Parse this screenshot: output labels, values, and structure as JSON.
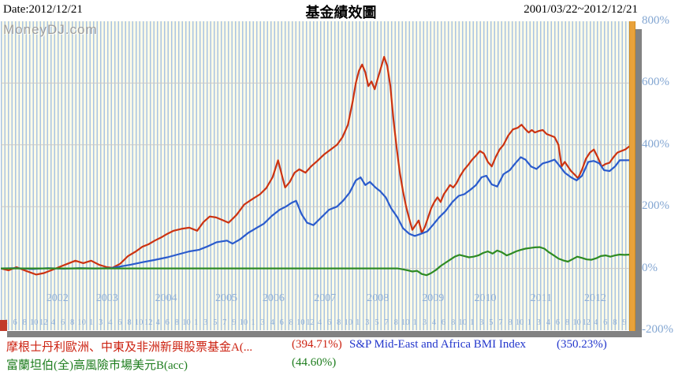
{
  "header": {
    "date_label": "Date:2012/12/21",
    "title": "基金績效圖",
    "range_label": "2001/03/22~2012/12/21"
  },
  "watermark": "MoneyDJ.com",
  "colors": {
    "plot_background": "#fdfbe8",
    "stripe": "#a9c4e2",
    "grid": "#c9c9c9",
    "axis_text": "#83a6d2",
    "scrollbar_orange": "#e9a23b",
    "shadow_gray": "#828282",
    "red_series": "#cc3311",
    "blue_series": "#2a5bcc",
    "green_series": "#2e8b22"
  },
  "axes": {
    "y_ticks": [
      {
        "label": "800%",
        "value": 800
      },
      {
        "label": "600%",
        "value": 600
      },
      {
        "label": "400%",
        "value": 400
      },
      {
        "label": "200%",
        "value": 200
      },
      {
        "label": "0%",
        "value": 0
      },
      {
        "label": "-200%",
        "value": -200
      }
    ],
    "year_ticks": [
      {
        "label": "2002",
        "u": 0.09
      },
      {
        "label": "2003",
        "u": 0.169
      },
      {
        "label": "2004",
        "u": 0.263
      },
      {
        "label": "2005",
        "u": 0.359
      },
      {
        "label": "2006",
        "u": 0.434
      },
      {
        "label": "2007",
        "u": 0.516
      },
      {
        "label": "2008",
        "u": 0.6
      },
      {
        "label": "2009",
        "u": 0.688
      },
      {
        "label": "2010",
        "u": 0.771
      },
      {
        "label": "2011",
        "u": 0.86
      },
      {
        "label": "2012",
        "u": 0.946
      }
    ],
    "month_labels": [
      "4",
      "6",
      "8",
      "10",
      "12",
      "4",
      "6",
      "8",
      "10",
      "1",
      "3",
      "4",
      "6",
      "8",
      "10",
      "12",
      "4",
      "6",
      "8",
      "10",
      "1",
      "3",
      "5",
      "7",
      "9",
      "10",
      "1",
      "3",
      "4",
      "6",
      "8",
      "10",
      "12",
      "4",
      "6",
      "8",
      "10",
      "1",
      "3",
      "5",
      "7",
      "8",
      "10",
      "1",
      "3",
      "4",
      "6",
      "8",
      "10",
      "1",
      "3",
      "5",
      "7",
      "8",
      "10",
      "1",
      "3",
      "4",
      "6",
      "8",
      "10",
      "12",
      "4",
      "6",
      "8",
      "9"
    ]
  },
  "legend": {
    "items": [
      {
        "name": "摩根士丹利歐洲、中東及非洲新興股票基金A(...",
        "value": "(394.71%)",
        "color": "#cc2211"
      },
      {
        "name": "S&P Mid-East and Africa BMI Index",
        "value": "(350.23%)",
        "color": "#2236cc"
      },
      {
        "name": "富蘭坦伯(全)高風險市場美元B(acc)",
        "value": "(44.60%)",
        "color": "#1e7d1e"
      }
    ]
  },
  "chart_data": {
    "type": "line",
    "title": "基金績效圖",
    "x_range": [
      "2001/03/22",
      "2012/12/21"
    ],
    "x_unit": "axis position 0-800 spanning 2001/03/22 to 2012/12/21",
    "y_axis": {
      "unit": "%",
      "min": -200,
      "max": 800,
      "grid_step": 200
    },
    "grid": true,
    "legend_position": "bottom",
    "series": [
      {
        "name": "摩根士丹利歐洲、中東及非洲新興股票基金A(...",
        "final_value_pct": 394.71,
        "color": "#cc3311",
        "points": [
          [
            0,
            0
          ],
          [
            10,
            -6
          ],
          [
            20,
            4
          ],
          [
            32,
            -8
          ],
          [
            45,
            -20
          ],
          [
            55,
            -15
          ],
          [
            65,
            -5
          ],
          [
            75,
            5
          ],
          [
            85,
            15
          ],
          [
            95,
            25
          ],
          [
            105,
            17
          ],
          [
            115,
            25
          ],
          [
            125,
            12
          ],
          [
            135,
            4
          ],
          [
            142,
            2
          ],
          [
            152,
            15
          ],
          [
            162,
            40
          ],
          [
            172,
            55
          ],
          [
            180,
            70
          ],
          [
            188,
            78
          ],
          [
            196,
            90
          ],
          [
            204,
            100
          ],
          [
            212,
            112
          ],
          [
            220,
            122
          ],
          [
            230,
            128
          ],
          [
            240,
            132
          ],
          [
            250,
            122
          ],
          [
            258,
            150
          ],
          [
            266,
            168
          ],
          [
            274,
            165
          ],
          [
            282,
            157
          ],
          [
            290,
            148
          ],
          [
            300,
            173
          ],
          [
            310,
            207
          ],
          [
            320,
            224
          ],
          [
            330,
            240
          ],
          [
            338,
            260
          ],
          [
            346,
            295
          ],
          [
            353,
            350
          ],
          [
            358,
            300
          ],
          [
            362,
            262
          ],
          [
            368,
            280
          ],
          [
            374,
            310
          ],
          [
            380,
            321
          ],
          [
            388,
            310
          ],
          [
            395,
            330
          ],
          [
            403,
            348
          ],
          [
            412,
            370
          ],
          [
            420,
            385
          ],
          [
            428,
            400
          ],
          [
            435,
            425
          ],
          [
            442,
            465
          ],
          [
            448,
            540
          ],
          [
            452,
            600
          ],
          [
            456,
            640
          ],
          [
            460,
            660
          ],
          [
            464,
            635
          ],
          [
            468,
            590
          ],
          [
            472,
            605
          ],
          [
            476,
            580
          ],
          [
            480,
            615
          ],
          [
            484,
            650
          ],
          [
            488,
            685
          ],
          [
            492,
            655
          ],
          [
            496,
            590
          ],
          [
            500,
            480
          ],
          [
            504,
            390
          ],
          [
            508,
            310
          ],
          [
            512,
            250
          ],
          [
            516,
            200
          ],
          [
            520,
            160
          ],
          [
            524,
            125
          ],
          [
            528,
            140
          ],
          [
            532,
            155
          ],
          [
            536,
            115
          ],
          [
            540,
            135
          ],
          [
            544,
            165
          ],
          [
            548,
            195
          ],
          [
            552,
            215
          ],
          [
            556,
            230
          ],
          [
            560,
            215
          ],
          [
            564,
            240
          ],
          [
            568,
            255
          ],
          [
            572,
            270
          ],
          [
            576,
            262
          ],
          [
            580,
            275
          ],
          [
            585,
            300
          ],
          [
            590,
            320
          ],
          [
            595,
            335
          ],
          [
            600,
            352
          ],
          [
            605,
            365
          ],
          [
            610,
            380
          ],
          [
            615,
            372
          ],
          [
            620,
            345
          ],
          [
            625,
            330
          ],
          [
            630,
            360
          ],
          [
            635,
            385
          ],
          [
            640,
            400
          ],
          [
            646,
            430
          ],
          [
            652,
            450
          ],
          [
            658,
            455
          ],
          [
            663,
            465
          ],
          [
            668,
            450
          ],
          [
            672,
            440
          ],
          [
            676,
            448
          ],
          [
            680,
            440
          ],
          [
            685,
            445
          ],
          [
            690,
            448
          ],
          [
            695,
            435
          ],
          [
            700,
            430
          ],
          [
            705,
            425
          ],
          [
            710,
            400
          ],
          [
            714,
            330
          ],
          [
            718,
            345
          ],
          [
            722,
            330
          ],
          [
            726,
            315
          ],
          [
            730,
            305
          ],
          [
            735,
            292
          ],
          [
            740,
            320
          ],
          [
            745,
            355
          ],
          [
            750,
            375
          ],
          [
            755,
            385
          ],
          [
            760,
            360
          ],
          [
            765,
            330
          ],
          [
            770,
            338
          ],
          [
            775,
            342
          ],
          [
            780,
            360
          ],
          [
            785,
            375
          ],
          [
            790,
            380
          ],
          [
            795,
            385
          ],
          [
            800,
            394.71
          ]
        ]
      },
      {
        "name": "S&P Mid-East and Africa BMI Index",
        "final_value_pct": 350.23,
        "color": "#2a5bcc",
        "points": [
          [
            0,
            0
          ],
          [
            20,
            1
          ],
          [
            40,
            -2
          ],
          [
            60,
            1
          ],
          [
            80,
            -1
          ],
          [
            100,
            1
          ],
          [
            120,
            0
          ],
          [
            140,
            1
          ],
          [
            150,
            5
          ],
          [
            165,
            12
          ],
          [
            180,
            20
          ],
          [
            195,
            27
          ],
          [
            212,
            36
          ],
          [
            225,
            45
          ],
          [
            240,
            55
          ],
          [
            252,
            60
          ],
          [
            262,
            70
          ],
          [
            275,
            85
          ],
          [
            288,
            90
          ],
          [
            295,
            80
          ],
          [
            305,
            95
          ],
          [
            315,
            115
          ],
          [
            325,
            130
          ],
          [
            335,
            145
          ],
          [
            345,
            170
          ],
          [
            355,
            190
          ],
          [
            363,
            200
          ],
          [
            370,
            212
          ],
          [
            376,
            219
          ],
          [
            383,
            175
          ],
          [
            390,
            148
          ],
          [
            398,
            140
          ],
          [
            408,
            165
          ],
          [
            418,
            190
          ],
          [
            428,
            200
          ],
          [
            436,
            220
          ],
          [
            444,
            245
          ],
          [
            452,
            285
          ],
          [
            458,
            295
          ],
          [
            464,
            270
          ],
          [
            470,
            280
          ],
          [
            477,
            262
          ],
          [
            483,
            250
          ],
          [
            490,
            230
          ],
          [
            497,
            195
          ],
          [
            505,
            165
          ],
          [
            512,
            130
          ],
          [
            520,
            112
          ],
          [
            527,
            105
          ],
          [
            535,
            112
          ],
          [
            543,
            120
          ],
          [
            550,
            140
          ],
          [
            558,
            165
          ],
          [
            566,
            185
          ],
          [
            575,
            215
          ],
          [
            583,
            235
          ],
          [
            590,
            240
          ],
          [
            598,
            255
          ],
          [
            605,
            270
          ],
          [
            612,
            295
          ],
          [
            618,
            300
          ],
          [
            625,
            272
          ],
          [
            632,
            265
          ],
          [
            640,
            305
          ],
          [
            648,
            318
          ],
          [
            655,
            340
          ],
          [
            662,
            360
          ],
          [
            668,
            352
          ],
          [
            675,
            330
          ],
          [
            682,
            322
          ],
          [
            690,
            340
          ],
          [
            697,
            345
          ],
          [
            705,
            352
          ],
          [
            712,
            330
          ],
          [
            718,
            310
          ],
          [
            726,
            295
          ],
          [
            733,
            285
          ],
          [
            740,
            300
          ],
          [
            748,
            345
          ],
          [
            755,
            348
          ],
          [
            762,
            340
          ],
          [
            768,
            318
          ],
          [
            775,
            315
          ],
          [
            782,
            330
          ],
          [
            788,
            350
          ],
          [
            800,
            350.23
          ]
        ]
      },
      {
        "name": "富蘭坦伯(全)高風險市場美元B(acc)",
        "final_value_pct": 44.6,
        "color": "#2e8b22",
        "points": [
          [
            0,
            0
          ],
          [
            100,
            0
          ],
          [
            200,
            0
          ],
          [
            300,
            0
          ],
          [
            400,
            0
          ],
          [
            460,
            0
          ],
          [
            505,
            0
          ],
          [
            512,
            -3
          ],
          [
            518,
            -6
          ],
          [
            524,
            -10
          ],
          [
            530,
            -8
          ],
          [
            536,
            -18
          ],
          [
            542,
            -22
          ],
          [
            548,
            -15
          ],
          [
            554,
            -5
          ],
          [
            560,
            8
          ],
          [
            566,
            18
          ],
          [
            572,
            28
          ],
          [
            578,
            38
          ],
          [
            584,
            44
          ],
          [
            590,
            40
          ],
          [
            596,
            36
          ],
          [
            602,
            38
          ],
          [
            608,
            42
          ],
          [
            614,
            50
          ],
          [
            620,
            55
          ],
          [
            626,
            48
          ],
          [
            632,
            58
          ],
          [
            638,
            52
          ],
          [
            644,
            42
          ],
          [
            650,
            48
          ],
          [
            656,
            55
          ],
          [
            662,
            60
          ],
          [
            668,
            64
          ],
          [
            674,
            66
          ],
          [
            680,
            68
          ],
          [
            686,
            69
          ],
          [
            692,
            64
          ],
          [
            698,
            52
          ],
          [
            704,
            42
          ],
          [
            710,
            32
          ],
          [
            716,
            26
          ],
          [
            722,
            22
          ],
          [
            728,
            30
          ],
          [
            734,
            38
          ],
          [
            740,
            34
          ],
          [
            746,
            29
          ],
          [
            752,
            28
          ],
          [
            758,
            33
          ],
          [
            764,
            40
          ],
          [
            770,
            42
          ],
          [
            776,
            38
          ],
          [
            782,
            42
          ],
          [
            788,
            45
          ],
          [
            794,
            44
          ],
          [
            800,
            44.6
          ]
        ]
      }
    ]
  }
}
